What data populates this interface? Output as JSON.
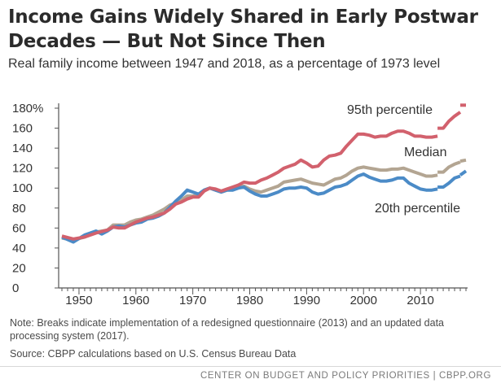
{
  "chart_data": {
    "type": "line",
    "title": "Income Gains Widely Shared in Early Postwar Decades — But Not Since Then",
    "subtitle": "Real family income between 1947 and 2018, as a percentage of 1973 level",
    "xlim": [
      1947,
      2018
    ],
    "ylim": [
      0,
      180
    ],
    "x_ticks": [
      1950,
      1960,
      1970,
      1980,
      1990,
      2000,
      2010
    ],
    "y_ticks": [
      0,
      20,
      40,
      60,
      80,
      100,
      120,
      140,
      160,
      180
    ],
    "y_tick_labels": [
      "0",
      "20",
      "40",
      "60",
      "80",
      "100",
      "120",
      "140",
      "160",
      "180%"
    ],
    "grid": false,
    "breaks": [
      2013,
      2017
    ],
    "series": [
      {
        "name": "95th percentile",
        "color": "#d2616d",
        "points": [
          [
            1947,
            52
          ],
          [
            1949,
            49
          ],
          [
            1951,
            51
          ],
          [
            1953,
            55
          ],
          [
            1955,
            58
          ],
          [
            1956,
            61
          ],
          [
            1957,
            60
          ],
          [
            1958,
            60
          ],
          [
            1959,
            63
          ],
          [
            1960,
            66
          ],
          [
            1961,
            68
          ],
          [
            1962,
            70
          ],
          [
            1963,
            71
          ],
          [
            1964,
            73
          ],
          [
            1965,
            75
          ],
          [
            1966,
            79
          ],
          [
            1967,
            84
          ],
          [
            1968,
            86
          ],
          [
            1969,
            89
          ],
          [
            1970,
            91
          ],
          [
            1971,
            91
          ],
          [
            1972,
            97
          ],
          [
            1973,
            100
          ],
          [
            1974,
            99
          ],
          [
            1975,
            97
          ],
          [
            1976,
            99
          ],
          [
            1977,
            101
          ],
          [
            1978,
            103
          ],
          [
            1979,
            106
          ],
          [
            1980,
            105
          ],
          [
            1981,
            105
          ],
          [
            1982,
            108
          ],
          [
            1983,
            110
          ],
          [
            1984,
            113
          ],
          [
            1985,
            116
          ],
          [
            1986,
            120
          ],
          [
            1987,
            122
          ],
          [
            1988,
            124
          ],
          [
            1989,
            128
          ],
          [
            1990,
            125
          ],
          [
            1991,
            121
          ],
          [
            1992,
            122
          ],
          [
            1993,
            128
          ],
          [
            1994,
            132
          ],
          [
            1995,
            133
          ],
          [
            1996,
            135
          ],
          [
            1997,
            142
          ],
          [
            1998,
            148
          ],
          [
            1999,
            154
          ],
          [
            2000,
            154
          ],
          [
            2001,
            153
          ],
          [
            2002,
            151
          ],
          [
            2003,
            152
          ],
          [
            2004,
            152
          ],
          [
            2005,
            155
          ],
          [
            2006,
            157
          ],
          [
            2007,
            157
          ],
          [
            2008,
            155
          ],
          [
            2009,
            152
          ],
          [
            2010,
            152
          ],
          [
            2011,
            151
          ],
          [
            2012,
            151
          ],
          [
            2013,
            152
          ],
          [
            2013,
            160
          ],
          [
            2014,
            160
          ],
          [
            2015,
            167
          ],
          [
            2016,
            172
          ],
          [
            2017,
            176
          ],
          [
            2017,
            183
          ],
          [
            2018,
            183
          ]
        ]
      },
      {
        "name": "Median",
        "color": "#b3a592",
        "points": [
          [
            1947,
            50
          ],
          [
            1949,
            48
          ],
          [
            1951,
            51
          ],
          [
            1953,
            56
          ],
          [
            1955,
            58
          ],
          [
            1956,
            63
          ],
          [
            1957,
            63
          ],
          [
            1958,
            63
          ],
          [
            1959,
            66
          ],
          [
            1960,
            68
          ],
          [
            1961,
            69
          ],
          [
            1962,
            71
          ],
          [
            1963,
            73
          ],
          [
            1964,
            76
          ],
          [
            1965,
            79
          ],
          [
            1966,
            83
          ],
          [
            1967,
            85
          ],
          [
            1968,
            88
          ],
          [
            1969,
            92
          ],
          [
            1970,
            92
          ],
          [
            1971,
            93
          ],
          [
            1972,
            98
          ],
          [
            1973,
            100
          ],
          [
            1974,
            98
          ],
          [
            1975,
            96
          ],
          [
            1976,
            98
          ],
          [
            1977,
            99
          ],
          [
            1978,
            101
          ],
          [
            1979,
            102
          ],
          [
            1980,
            99
          ],
          [
            1981,
            97
          ],
          [
            1982,
            96
          ],
          [
            1983,
            98
          ],
          [
            1984,
            100
          ],
          [
            1985,
            102
          ],
          [
            1986,
            106
          ],
          [
            1987,
            107
          ],
          [
            1988,
            108
          ],
          [
            1989,
            109
          ],
          [
            1990,
            107
          ],
          [
            1991,
            105
          ],
          [
            1992,
            104
          ],
          [
            1993,
            103
          ],
          [
            1994,
            106
          ],
          [
            1995,
            109
          ],
          [
            1996,
            110
          ],
          [
            1997,
            113
          ],
          [
            1998,
            117
          ],
          [
            1999,
            120
          ],
          [
            2000,
            121
          ],
          [
            2001,
            120
          ],
          [
            2002,
            119
          ],
          [
            2003,
            118
          ],
          [
            2004,
            118
          ],
          [
            2005,
            119
          ],
          [
            2006,
            119
          ],
          [
            2007,
            120
          ],
          [
            2008,
            118
          ],
          [
            2009,
            116
          ],
          [
            2010,
            114
          ],
          [
            2011,
            112
          ],
          [
            2012,
            112
          ],
          [
            2013,
            113
          ],
          [
            2013,
            116
          ],
          [
            2014,
            116
          ],
          [
            2015,
            121
          ],
          [
            2016,
            124
          ],
          [
            2017,
            126
          ],
          [
            2017,
            127
          ],
          [
            2018,
            128
          ]
        ]
      },
      {
        "name": "20th percentile",
        "color": "#4b8bc7",
        "points": [
          [
            1947,
            51
          ],
          [
            1949,
            46
          ],
          [
            1951,
            53
          ],
          [
            1953,
            57
          ],
          [
            1954,
            54
          ],
          [
            1955,
            57
          ],
          [
            1956,
            61
          ],
          [
            1957,
            62
          ],
          [
            1958,
            61
          ],
          [
            1959,
            63
          ],
          [
            1960,
            65
          ],
          [
            1961,
            66
          ],
          [
            1962,
            69
          ],
          [
            1963,
            70
          ],
          [
            1964,
            72
          ],
          [
            1965,
            75
          ],
          [
            1966,
            81
          ],
          [
            1967,
            87
          ],
          [
            1968,
            92
          ],
          [
            1969,
            98
          ],
          [
            1970,
            96
          ],
          [
            1971,
            94
          ],
          [
            1972,
            98
          ],
          [
            1973,
            100
          ],
          [
            1974,
            98
          ],
          [
            1975,
            96
          ],
          [
            1976,
            98
          ],
          [
            1977,
            98
          ],
          [
            1978,
            100
          ],
          [
            1979,
            101
          ],
          [
            1980,
            97
          ],
          [
            1981,
            94
          ],
          [
            1982,
            92
          ],
          [
            1983,
            92
          ],
          [
            1984,
            94
          ],
          [
            1985,
            96
          ],
          [
            1986,
            99
          ],
          [
            1987,
            100
          ],
          [
            1988,
            100
          ],
          [
            1989,
            101
          ],
          [
            1990,
            100
          ],
          [
            1991,
            96
          ],
          [
            1992,
            94
          ],
          [
            1993,
            95
          ],
          [
            1994,
            98
          ],
          [
            1995,
            101
          ],
          [
            1996,
            102
          ],
          [
            1997,
            104
          ],
          [
            1998,
            108
          ],
          [
            1999,
            112
          ],
          [
            2000,
            114
          ],
          [
            2001,
            111
          ],
          [
            2002,
            109
          ],
          [
            2003,
            107
          ],
          [
            2004,
            107
          ],
          [
            2005,
            108
          ],
          [
            2006,
            110
          ],
          [
            2007,
            110
          ],
          [
            2008,
            105
          ],
          [
            2009,
            102
          ],
          [
            2010,
            99
          ],
          [
            2011,
            98
          ],
          [
            2012,
            98
          ],
          [
            2013,
            99
          ],
          [
            2013,
            101
          ],
          [
            2014,
            101
          ],
          [
            2015,
            105
          ],
          [
            2016,
            110
          ],
          [
            2017,
            112
          ],
          [
            2017,
            113
          ],
          [
            2018,
            117
          ]
        ]
      }
    ],
    "labels": [
      "95th percentile",
      "Median",
      "20th percentile"
    ],
    "note": "Note: Breaks indicate implementation of a redesigned questionnaire (2013) and an updated data processing system (2017).",
    "source": "Source: CBPP calculations based on U.S. Census Bureau Data",
    "footer": "CENTER ON BUDGET AND POLICY PRIORITIES | CBPP.ORG"
  }
}
